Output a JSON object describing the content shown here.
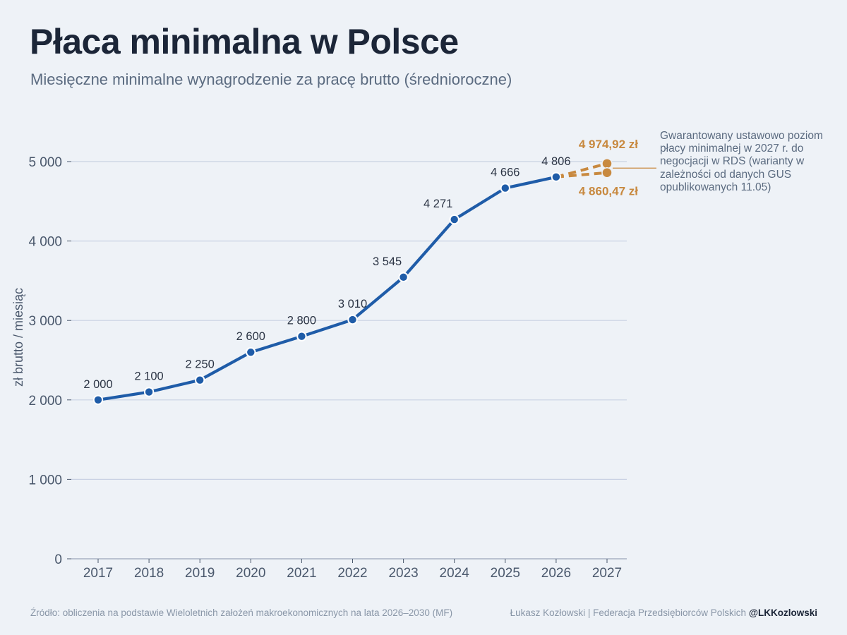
{
  "header": {
    "title": "Płaca minimalna w Polsce",
    "subtitle": "Miesięczne minimalne wynagrodzenie za pracę brutto (średnioroczne)"
  },
  "annotation": {
    "text": "Gwarantowany ustawowo poziom płacy minimalnej w 2027 r. do negocjacji w RDS (warianty w zależności od danych GUS opublikowanych 11.05)"
  },
  "footer": {
    "source": "Źródło: obliczenia na podstawie Wieloletnich założeń makroekonomicznych na lata 2026–2030 (MF)",
    "author": "Łukasz Kozłowski | Federacja Przedsiębiorców Polskich",
    "handle": "@LKKozlowski"
  },
  "colors": {
    "series": "#1f5ca8",
    "forecast": "#c8893f",
    "grid": "#c9d1e3",
    "axis_text": "#4a586c",
    "label_text": "#2b3444"
  },
  "chart_data": {
    "type": "line",
    "ylabel": "zł brutto / miesiąc",
    "xlabel": "",
    "ylim": [
      0,
      5000
    ],
    "y_ticks": [
      0,
      1000,
      2000,
      3000,
      4000,
      5000
    ],
    "y_tick_labels": [
      "0",
      "1 000",
      "2 000",
      "3 000",
      "4 000",
      "5 000"
    ],
    "x_ticks": [
      "2017",
      "2018",
      "2019",
      "2020",
      "2021",
      "2022",
      "2023",
      "2024",
      "2025",
      "2026",
      "2027"
    ],
    "grid": "horizontal",
    "series": [
      {
        "x": [
          "2017",
          "2018",
          "2019",
          "2020",
          "2021",
          "2022",
          "2023",
          "2024",
          "2025",
          "2026"
        ],
        "values": [
          2000,
          2100,
          2250,
          2600,
          2800,
          3010,
          3545,
          4271,
          4666,
          4806
        ],
        "labels": [
          "2 000",
          "2 100",
          "2 250",
          "2 600",
          "2 800",
          "3 010",
          "3 545",
          "4 271",
          "4 666",
          "4 806"
        ]
      }
    ],
    "forecast": [
      {
        "x": "2027",
        "value": 4974.92,
        "label": "4 974,92 zł"
      },
      {
        "x": "2027",
        "value": 4860.47,
        "label": "4 860,47 zł"
      }
    ]
  }
}
